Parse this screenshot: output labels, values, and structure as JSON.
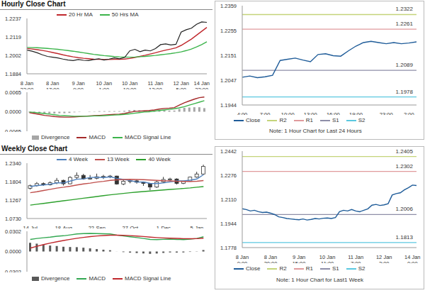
{
  "chart_data": [
    {
      "type": "line",
      "title": "Hourly Close Chart",
      "categories": [
        "8 Jan 23:00",
        null,
        null,
        null,
        null,
        "8 Jan 17:00",
        null,
        null,
        null,
        null,
        "9 Jan 9:00",
        null,
        null,
        null,
        null,
        "10 Jan 1:00",
        null,
        null,
        null,
        null,
        "10 Jan 19:00",
        null,
        null,
        null,
        null,
        "11 Jan 12:00",
        null,
        null,
        null,
        null,
        "12 Jan 5:00",
        null,
        null,
        null,
        "14 Jan 23:00",
        null
      ],
      "values": [
        1.2035,
        1.2028,
        1.2018,
        1.2005,
        1.1995,
        1.199,
        1.1985,
        1.1978,
        1.1972,
        1.1968,
        1.1975,
        1.197,
        1.1968,
        1.1975,
        1.198,
        1.1972,
        1.1978,
        1.1985,
        1.198,
        1.1988,
        1.203,
        1.204,
        1.2025,
        1.2035,
        1.203,
        1.2045,
        1.207,
        1.2075,
        1.2068,
        1.2072,
        1.215,
        1.2165,
        1.2175,
        1.22,
        1.2215,
        1.2212
      ],
      "color": "#222222",
      "series": [
        {
          "name": "20 Hr MA",
          "color": "#c0282d",
          "values": [
            1.2045,
            1.2042,
            1.2038,
            1.2033,
            1.2027,
            1.202,
            1.2013,
            1.2005,
            1.1998,
            1.1992,
            1.1987,
            1.1983,
            1.198,
            1.1977,
            1.1976,
            1.1975,
            1.1975,
            1.1976,
            1.1977,
            1.1978,
            1.1982,
            1.1988,
            1.1995,
            1.2002,
            1.201,
            1.2018,
            1.2027,
            1.2035,
            1.2042,
            1.205,
            1.2065,
            1.2085,
            1.2105,
            1.213,
            1.2155,
            1.218
          ]
        },
        {
          "name": "50 Hrs MA",
          "color": "#3cb44b",
          "values": [
            1.2052,
            1.2051,
            1.205,
            1.2048,
            1.2046,
            1.2043,
            1.204,
            1.2036,
            1.2032,
            1.2028,
            1.2023,
            1.2018,
            1.2013,
            1.2008,
            1.2004,
            1.2,
            1.1997,
            1.1994,
            1.1992,
            1.1991,
            1.199,
            1.1991,
            1.1993,
            1.1995,
            1.1998,
            1.2001,
            1.2005,
            1.2009,
            1.2013,
            1.2018,
            1.2024,
            1.2032,
            1.2042,
            1.2055,
            1.207,
            1.2088
          ]
        }
      ],
      "ylim": [
        1.1884,
        1.2237
      ],
      "yticks": [
        1.1884,
        1.2002,
        1.2119,
        1.2237
      ],
      "grid": false
    },
    {
      "type": "line",
      "tick_labels": "y",
      "series": [
        {
          "name": "Divergence",
          "type": "bar",
          "color": "#a6a6a6",
          "values": [
            -0.0002,
            -0.0004,
            -0.0005,
            -0.0006,
            -0.0006,
            -0.0006,
            -0.0005,
            -0.0005,
            -0.0004,
            -0.0002,
            -0.0001,
            0,
            0.0001,
            0.0001,
            0.0002,
            0.0002,
            0.0002,
            0.0002,
            0.0002,
            0.0003,
            0.0005,
            0.0006,
            0.0005,
            0.0004,
            0.0004,
            0.0004,
            0.0005,
            0.0005,
            0.0004,
            0.0004,
            0.0009,
            0.0013,
            0.0014,
            0.0015,
            0.0015,
            0.0012
          ]
        },
        {
          "name": "MACD",
          "type": "line",
          "color": "#a52a2a",
          "values": [
            -0.0003,
            -0.0006,
            -0.0009,
            -0.0012,
            -0.0014,
            -0.0016,
            -0.0017,
            -0.0018,
            -0.0018,
            -0.0017,
            -0.0016,
            -0.0015,
            -0.0014,
            -0.0013,
            -0.0012,
            -0.0011,
            -0.001,
            -0.0009,
            -0.0008,
            -0.0006,
            -0.0002,
            0.0001,
            0.0002,
            0.0003,
            0.0004,
            0.0006,
            0.0009,
            0.0011,
            0.0012,
            0.0014,
            0.0022,
            0.003,
            0.0036,
            0.0042,
            0.0047,
            0.0049
          ]
        },
        {
          "name": "MACD Signal Line",
          "type": "line",
          "color": "#3cb44b",
          "values": [
            -0.0001,
            -0.0002,
            -0.0004,
            -0.0006,
            -0.0008,
            -0.001,
            -0.0012,
            -0.0013,
            -0.0014,
            -0.0015,
            -0.0015,
            -0.0015,
            -0.0015,
            -0.0014,
            -0.0014,
            -0.0013,
            -0.0012,
            -0.0011,
            -0.001,
            -0.0009,
            -0.0007,
            -0.0005,
            -0.0003,
            -0.0001,
            0,
            0.0002,
            0.0004,
            0.0006,
            0.0008,
            0.001,
            0.0013,
            0.0017,
            0.0022,
            0.0027,
            0.0032,
            0.0037
          ]
        }
      ],
      "ylim": [
        -0.0065,
        0.0065
      ],
      "yticks": [
        -0.0065,
        {
          "value": 0,
          "label": "0.0000"
        },
        0.0065
      ],
      "grid": false
    },
    {
      "type": "line",
      "categories": [
        "4:00",
        null,
        null,
        "7:00",
        null,
        null,
        "10:00",
        null,
        null,
        "13:00",
        null,
        null,
        "16:00",
        null,
        null,
        "19:00",
        null,
        null,
        null,
        "23:00",
        null,
        null,
        "2:00",
        null
      ],
      "series": [
        {
          "name": "Close",
          "color": "#1f5c99",
          "values": [
            1.206,
            1.2065,
            1.2058,
            1.2062,
            1.2068,
            1.213,
            1.2135,
            1.214,
            1.2132,
            1.2125,
            1.2155,
            1.2158,
            1.215,
            1.2148,
            1.217,
            1.219,
            1.2205,
            1.221,
            1.2205,
            1.22,
            1.2205,
            1.22,
            1.2203,
            1.2208
          ]
        }
      ],
      "levels": [
        {
          "name": "R2",
          "value": 1.2322,
          "color": "#c4d47a"
        },
        {
          "name": "R1",
          "value": 1.2261,
          "color": "#e09a9c"
        },
        {
          "name": "S1",
          "value": 1.2089,
          "color": "#8e8ea8"
        },
        {
          "name": "S2",
          "value": 1.1978,
          "color": "#5bc8e0"
        }
      ],
      "annotations": [
        "Note: 1 Hour Chart for Last 24 Hours"
      ],
      "ylim": [
        1.1944,
        1.2359
      ],
      "yticks": [
        1.1944,
        1.2047,
        1.2151,
        1.2255,
        1.2359
      ],
      "grid": false
    },
    {
      "type": "candlestick",
      "title": "Weekly Close Chart",
      "categories": [
        "14-Jul",
        null,
        null,
        null,
        null,
        "18-Aug",
        null,
        null,
        null,
        null,
        "22-Sep",
        null,
        null,
        null,
        null,
        "27-Oct",
        null,
        null,
        null,
        null,
        "1-Dec",
        null,
        null,
        null,
        null,
        "5-Jan",
        null
      ],
      "candles": {
        "color": "#333333",
        "open": [
          1.161,
          1.1685,
          1.1745,
          1.171,
          1.177,
          1.184,
          1.174,
          1.1925,
          1.1985,
          1.1885,
          1.19,
          1.1945,
          1.1955,
          1.1965,
          1.1735,
          1.1815,
          1.1825,
          1.1785,
          1.175,
          1.1645,
          1.1795,
          1.1865,
          1.188,
          1.175,
          1.181,
          1.1935,
          1.2025
        ],
        "high": [
          1.1715,
          1.179,
          1.178,
          1.181,
          1.191,
          1.186,
          1.196,
          1.207,
          1.203,
          1.1995,
          1.2035,
          1.2,
          1.1995,
          1.1975,
          1.186,
          1.188,
          1.186,
          1.179,
          1.176,
          1.183,
          1.194,
          1.1915,
          1.19,
          1.183,
          1.195,
          1.209,
          1.2295
        ],
        "low": [
          1.1575,
          1.166,
          1.168,
          1.169,
          1.173,
          1.169,
          1.1725,
          1.188,
          1.186,
          1.186,
          1.187,
          1.188,
          1.1905,
          1.1715,
          1.17,
          1.1755,
          1.1745,
          1.168,
          1.1555,
          1.162,
          1.177,
          1.1825,
          1.172,
          1.173,
          1.18,
          1.1915,
          1.2005
        ],
        "close": [
          1.1685,
          1.1745,
          1.171,
          1.177,
          1.184,
          1.174,
          1.1925,
          1.1985,
          1.1885,
          1.19,
          1.1945,
          1.1955,
          1.1965,
          1.1735,
          1.1815,
          1.1825,
          1.1785,
          1.175,
          1.1645,
          1.1795,
          1.1865,
          1.188,
          1.175,
          1.181,
          1.1935,
          1.2025,
          1.2245
        ]
      },
      "series": [
        {
          "name": "4 Week",
          "type": "line",
          "color": "#4f81bd",
          "values": [
            1.166,
            1.169,
            1.1705,
            1.1728,
            1.1766,
            1.1765,
            1.1819,
            1.1873,
            1.1884,
            1.1924,
            1.1929,
            1.1921,
            1.1941,
            1.19,
            1.1868,
            1.1835,
            1.179,
            1.1794,
            1.1751,
            1.1746,
            1.1764,
            1.1796,
            1.1823,
            1.1826,
            1.1844,
            1.188,
            1.2004
          ]
        },
        {
          "name": "13 Week",
          "type": "line",
          "color": "#c0504d",
          "values": [
            1.148,
            1.151,
            1.1545,
            1.158,
            1.1615,
            1.164,
            1.167,
            1.1705,
            1.1735,
            1.176,
            1.179,
            1.181,
            1.184,
            1.1855,
            1.1865,
            1.187,
            1.1865,
            1.186,
            1.185,
            1.184,
            1.183,
            1.1825,
            1.1815,
            1.181,
            1.181,
            1.1815,
            1.1835
          ]
        },
        {
          "name": "40 Week",
          "type": "line",
          "color": "#2ca02c",
          "values": [
            1.112,
            1.1145,
            1.117,
            1.1195,
            1.122,
            1.1245,
            1.127,
            1.1295,
            1.132,
            1.1345,
            1.137,
            1.1395,
            1.142,
            1.144,
            1.146,
            1.148,
            1.15,
            1.1515,
            1.153,
            1.1545,
            1.156,
            1.1575,
            1.159,
            1.1605,
            1.162,
            1.164,
            1.166
          ]
        }
      ],
      "ylim": [
        1.073,
        1.234
      ],
      "yticks": [
        {
          "value": 1.073,
          "label": "1.0730"
        },
        1.1267,
        1.1804,
        {
          "value": 1.234,
          "label": "1.2340"
        }
      ],
      "grid": false
    },
    {
      "type": "line",
      "tick_labels": "y",
      "series": [
        {
          "name": "Divergence",
          "type": "bar",
          "color": "#595959",
          "values": [
            0.013,
            0.0117,
            0.0102,
            0.0089,
            0.0082,
            0.0071,
            0.0067,
            0.0065,
            0.0057,
            0.0047,
            0.0036,
            0.0027,
            0.0019,
            0.0001,
            -0.0009,
            -0.0017,
            -0.0023,
            -0.0029,
            -0.0035,
            -0.003,
            -0.0021,
            -0.0014,
            -0.0016,
            -0.0014,
            -0.0006,
            0.0003,
            0.0022
          ]
        },
        {
          "name": "MACD",
          "type": "line",
          "color": "#33a852",
          "values": [
            0.018,
            0.0195,
            0.0205,
            0.0215,
            0.0228,
            0.0235,
            0.0248,
            0.0262,
            0.0268,
            0.027,
            0.0268,
            0.0265,
            0.0262,
            0.0245,
            0.0232,
            0.022,
            0.0208,
            0.0195,
            0.018,
            0.0178,
            0.0182,
            0.0185,
            0.018,
            0.0178,
            0.0185,
            0.0195,
            0.022
          ]
        },
        {
          "name": "MACD Signal Line",
          "type": "line",
          "color": "#c0282d",
          "values": [
            0.005,
            0.0078,
            0.0103,
            0.0126,
            0.0146,
            0.0164,
            0.0181,
            0.0197,
            0.0211,
            0.0223,
            0.0232,
            0.0238,
            0.0243,
            0.0244,
            0.0241,
            0.0237,
            0.0231,
            0.0224,
            0.0215,
            0.0208,
            0.0203,
            0.0199,
            0.0196,
            0.0192,
            0.0191,
            0.0192,
            0.0198
          ]
        }
      ],
      "ylim": [
        -0.0302,
        0.0302
      ],
      "yticks": [
        -0.0302,
        {
          "value": 0,
          "label": "0.0000"
        },
        0.0302
      ],
      "grid": false
    },
    {
      "type": "line",
      "categories": [
        "8 Jan 0:00",
        null,
        null,
        null,
        null,
        null,
        null,
        "8 Jan 20:00",
        null,
        null,
        null,
        null,
        null,
        null,
        "9 Jan 15:00",
        null,
        null,
        null,
        null,
        null,
        null,
        "10 Jan 11:00",
        null,
        null,
        null,
        null,
        null,
        null,
        "11 Jan 7:00",
        null,
        null,
        null,
        null,
        null,
        null,
        "12 Jan 3:00",
        null,
        null,
        null,
        null,
        null,
        null,
        "14 Jan 0:00",
        null
      ],
      "series": [
        {
          "name": "Close",
          "color": "#1f5c99",
          "values": [
            1.2045,
            1.204,
            1.203,
            1.2035,
            1.2025,
            1.202,
            1.2022,
            1.2015,
            1.2005,
            1.199,
            1.1985,
            1.1978,
            1.1975,
            1.1972,
            1.197,
            1.1975,
            1.1968,
            1.1972,
            1.1978,
            1.1975,
            1.198,
            1.1982,
            1.1978,
            1.1985,
            1.2025,
            1.2035,
            1.203,
            1.204,
            1.203,
            1.2025,
            1.2035,
            1.2045,
            1.207,
            1.2075,
            1.2068,
            1.2072,
            1.208,
            1.214,
            1.215,
            1.2155,
            1.2175,
            1.219,
            1.2208,
            1.2205
          ]
        }
      ],
      "levels": [
        {
          "name": "R2",
          "value": 1.2405,
          "color": "#c4d47a"
        },
        {
          "name": "R1",
          "value": 1.2302,
          "color": "#e09a9c"
        },
        {
          "name": "S1",
          "value": 1.2006,
          "color": "#8e8ea8"
        },
        {
          "name": "S2",
          "value": 1.1813,
          "color": "#5bc8e0"
        }
      ],
      "annotations": [
        "Note: 1 Hour Chart for Last1 Week"
      ],
      "ylim": [
        1.1778,
        1.2442
      ],
      "yticks": [
        1.1778,
        1.1944,
        {
          "value": 1.211,
          "label": "1.2110"
        },
        1.2276,
        1.2442
      ],
      "grid": false
    }
  ]
}
